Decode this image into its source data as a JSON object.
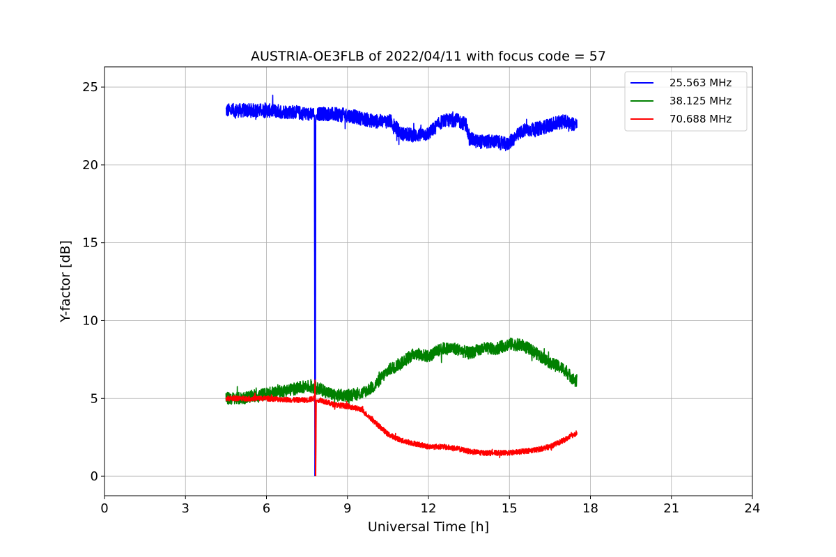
{
  "chart_data": {
    "type": "line",
    "title": "AUSTRIA-OE3FLB of 2022/04/11 with focus code = 57",
    "xlabel": "Universal Time [h]",
    "ylabel": "Y-factor [dB]",
    "xlim": [
      0,
      24
    ],
    "ylim": [
      -1.25,
      26.3
    ],
    "x_ticks": [
      0,
      3,
      6,
      9,
      12,
      15,
      18,
      21,
      24
    ],
    "y_ticks": [
      0,
      5,
      10,
      15,
      20,
      25
    ],
    "x_tick_labels": [
      "0",
      "3",
      "6",
      "9",
      "12",
      "15",
      "18",
      "21",
      "24"
    ],
    "y_tick_labels": [
      "0",
      "5",
      "10",
      "15",
      "20",
      "25"
    ],
    "grid": true,
    "legend_position": "top-right",
    "series": [
      {
        "name": "25.563 MHz",
        "color": "#0000ff",
        "noise": 0.45,
        "x": [
          4.5,
          5.0,
          6.0,
          7.0,
          7.78,
          7.8,
          7.81,
          7.82,
          7.84,
          8.0,
          9.0,
          10.0,
          10.6,
          11.0,
          11.5,
          12.0,
          12.5,
          13.0,
          13.4,
          13.5,
          13.8,
          14.5,
          14.9,
          15.5,
          16.0,
          17.0,
          17.5
        ],
        "y": [
          23.5,
          23.5,
          23.5,
          23.4,
          23.2,
          0.0,
          6.0,
          22.6,
          23.2,
          23.3,
          23.2,
          22.8,
          22.8,
          22.0,
          21.9,
          22.0,
          22.8,
          22.9,
          22.6,
          21.7,
          21.5,
          21.5,
          21.3,
          22.2,
          22.3,
          22.8,
          22.6
        ]
      },
      {
        "name": "38.125 MHz",
        "color": "#008000",
        "noise": 0.4,
        "x": [
          4.5,
          5.0,
          6.0,
          7.0,
          7.5,
          8.0,
          8.5,
          9.0,
          9.5,
          10.0,
          10.5,
          11.0,
          11.5,
          12.0,
          12.5,
          13.0,
          13.5,
          14.0,
          14.5,
          15.0,
          15.5,
          16.0,
          16.5,
          17.0,
          17.5
        ],
        "y": [
          5.0,
          5.0,
          5.3,
          5.6,
          5.8,
          5.6,
          5.2,
          5.2,
          5.3,
          5.8,
          6.8,
          7.3,
          7.9,
          7.7,
          8.2,
          8.2,
          7.9,
          8.2,
          8.2,
          8.5,
          8.4,
          7.9,
          7.3,
          6.9,
          6.0
        ]
      },
      {
        "name": "70.688 MHz",
        "color": "#ff0000",
        "noise": 0.17,
        "x": [
          4.5,
          5.0,
          6.0,
          7.0,
          7.5,
          7.78,
          7.8,
          7.82,
          7.84,
          8.0,
          8.5,
          9.0,
          9.5,
          10.0,
          10.5,
          11.0,
          11.5,
          12.0,
          12.5,
          13.0,
          13.5,
          14.0,
          14.5,
          15.0,
          15.5,
          16.0,
          16.5,
          17.0,
          17.5
        ],
        "y": [
          5.0,
          5.0,
          5.0,
          4.9,
          4.9,
          5.0,
          6.2,
          0.0,
          4.9,
          4.9,
          4.6,
          4.5,
          4.3,
          3.5,
          2.7,
          2.3,
          2.1,
          1.9,
          1.9,
          1.8,
          1.6,
          1.5,
          1.5,
          1.5,
          1.6,
          1.7,
          1.9,
          2.3,
          2.8
        ]
      }
    ]
  }
}
